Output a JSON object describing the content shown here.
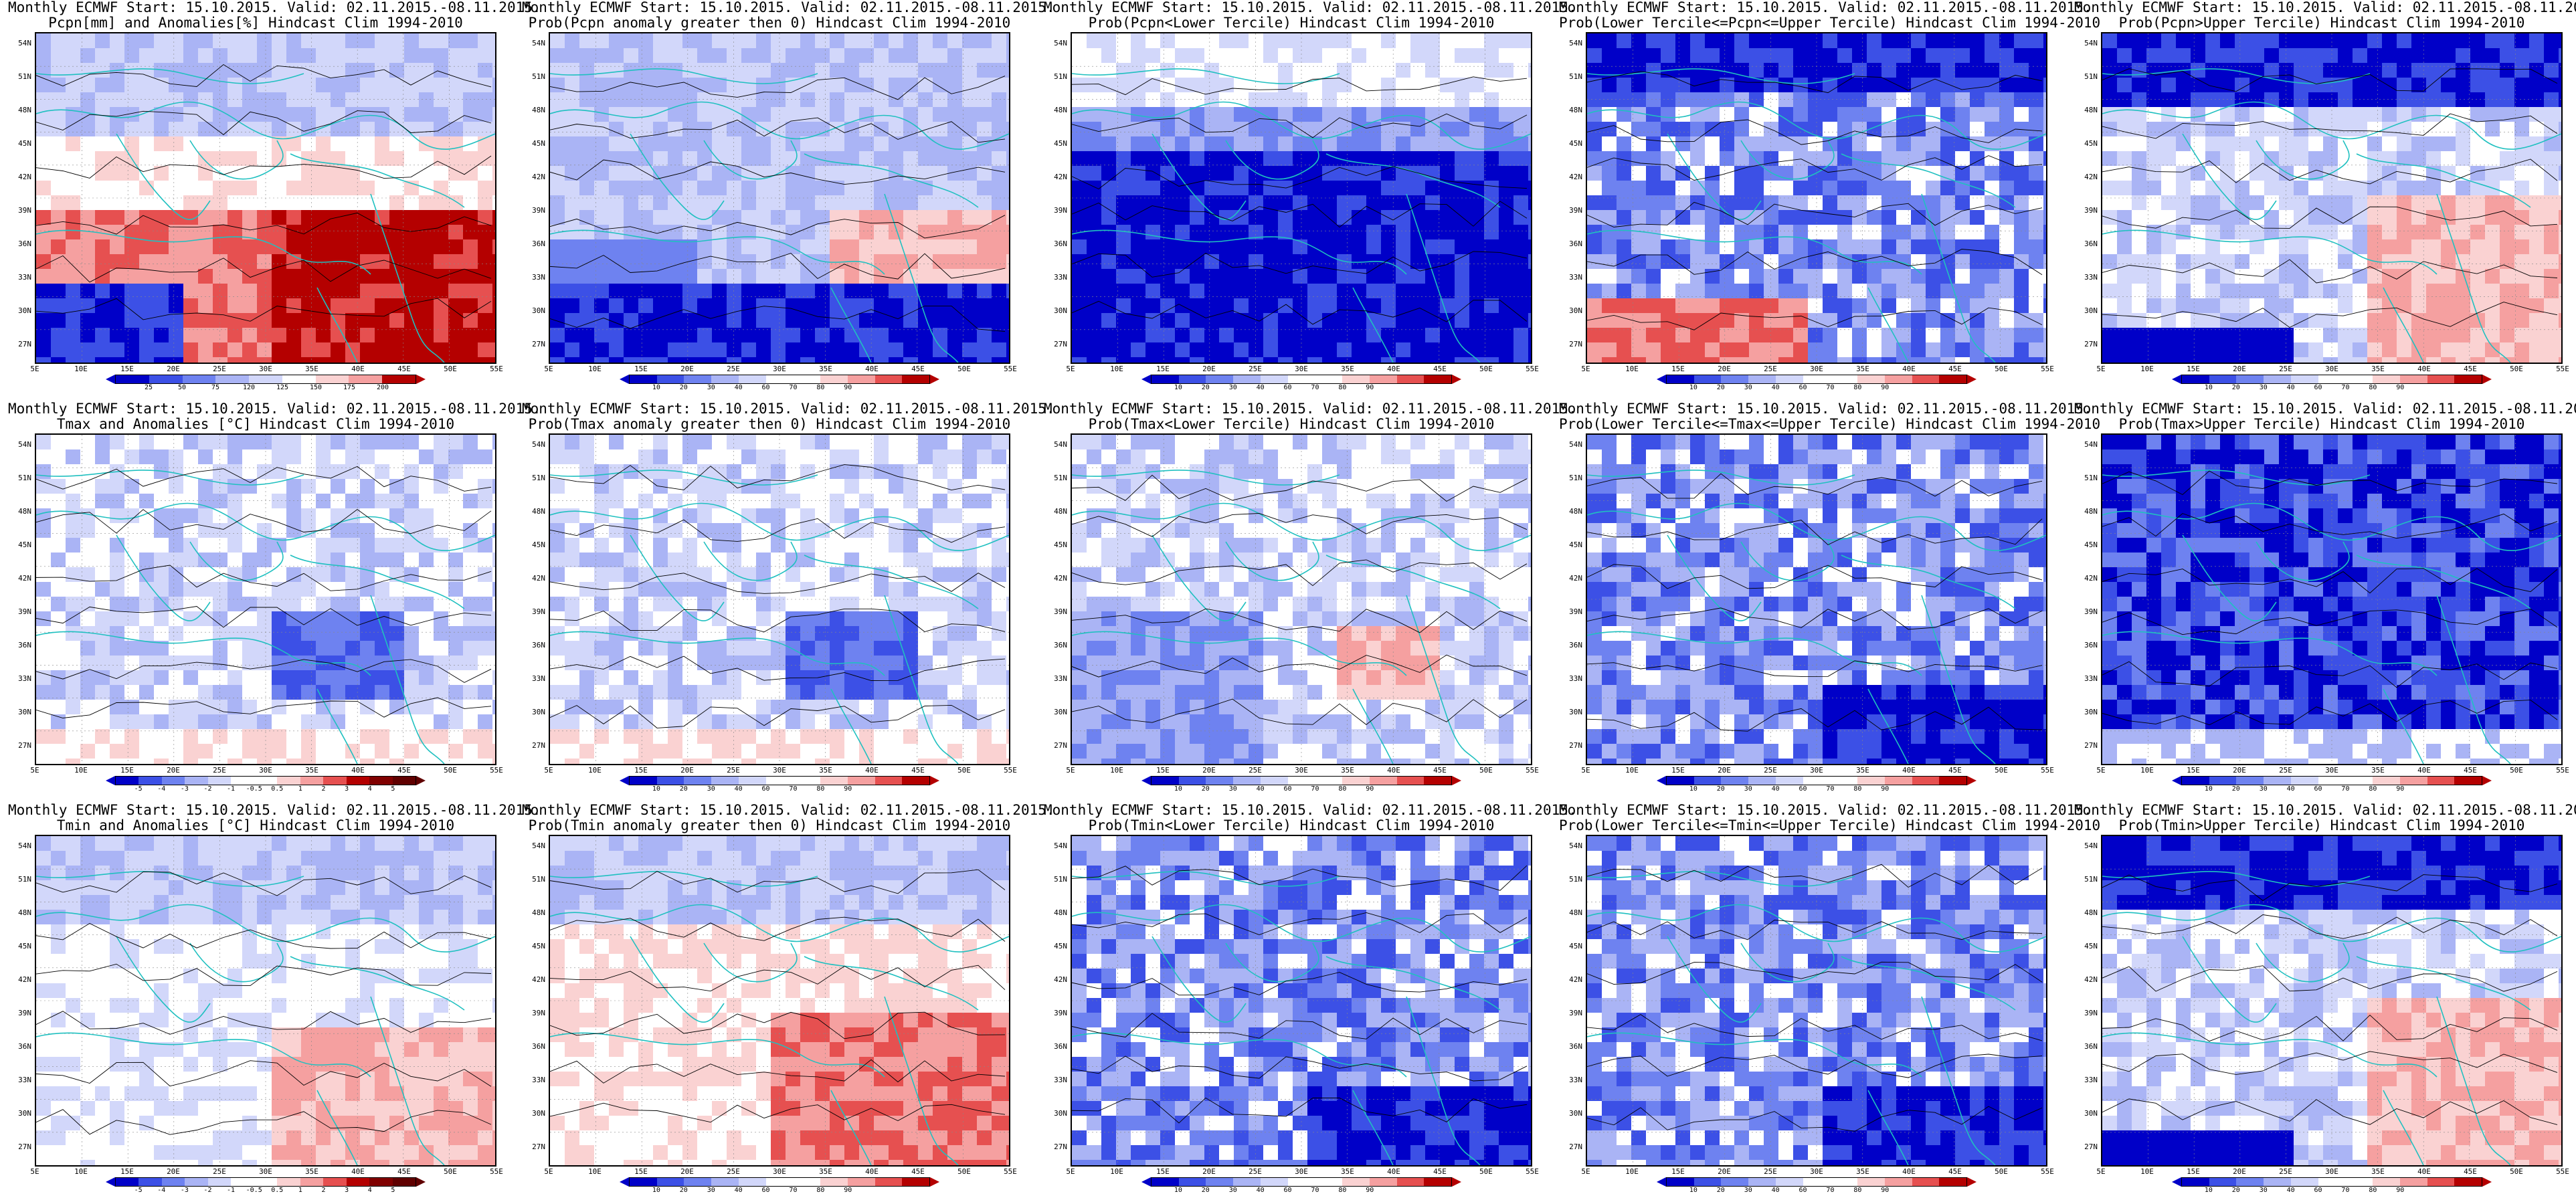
{
  "header_line": "Monthly ECMWF Start: 15.10.2015. Valid: 02.11.2015.-08.11.2015.",
  "lat_ticks": [
    "54N",
    "51N",
    "48N",
    "45N",
    "42N",
    "39N",
    "36N",
    "33N",
    "30N",
    "27N"
  ],
  "lon_ticks": [
    "5E",
    "10E",
    "15E",
    "20E",
    "25E",
    "30E",
    "35E",
    "40E",
    "45E",
    "50E",
    "55E"
  ],
  "prob_levels": [
    "10",
    "20",
    "30",
    "40",
    "60",
    "70",
    "80",
    "90"
  ],
  "anom_precip_levels": [
    "25",
    "50",
    "75",
    "120",
    "125",
    "150",
    "175",
    "200"
  ],
  "anom_temp_levels": [
    "-5",
    "-4",
    "-3",
    "-2",
    "-1",
    "-0.5",
    "0.5",
    "1",
    "2",
    "3",
    "4",
    "5"
  ],
  "colors": {
    "deep_blue": "#0000c8",
    "blue": "#3c50e6",
    "mid_blue": "#6e82f0",
    "light_blue": "#aab4f5",
    "pale_blue": "#d2d7fa",
    "white": "#ffffff",
    "pale_red": "#fad2d2",
    "light_red": "#f5a0a0",
    "red": "#e65050",
    "deep_red": "#b40000",
    "coast": "#20c0c0",
    "contour": "#000000"
  },
  "panels": [
    {
      "subtitle": "Pcpn[mm] and Anomalies[%] Hindcast Clim 1994-2010",
      "scale": "precip",
      "theme": "precip_anom"
    },
    {
      "subtitle": "Prob(Pcpn anomaly greater then 0) Hindcast Clim 1994-2010",
      "scale": "prob",
      "theme": "mixed_blue_south"
    },
    {
      "subtitle": "Prob(Pcpn<Lower Tercile) Hindcast Clim 1994-2010",
      "scale": "prob",
      "theme": "deep_blue_south"
    },
    {
      "subtitle": "Prob(Lower Tercile<=Pcpn<=Upper Tercile) Hindcast Clim 1994-2010",
      "scale": "prob",
      "theme": "blue_patchy_red_sw"
    },
    {
      "subtitle": "Prob(Pcpn>Upper Tercile) Hindcast Clim 1994-2010",
      "scale": "prob",
      "theme": "blue_north_red_east"
    },
    {
      "subtitle": "Tmax and Anomalies [°C] Hindcast Clim 1994-2010",
      "scale": "temp",
      "theme": "light_blue_mixed"
    },
    {
      "subtitle": "Prob(Tmax anomaly greater then 0) Hindcast Clim 1994-2010",
      "scale": "prob",
      "theme": "light_blue_mixed"
    },
    {
      "subtitle": "Prob(Tmax<Lower Tercile) Hindcast Clim 1994-2010",
      "scale": "prob",
      "theme": "mixed_blue_red"
    },
    {
      "subtitle": "Prob(Lower Tercile<=Tmax<=Upper Tercile) Hindcast Clim 1994-2010",
      "scale": "prob",
      "theme": "blue_patchy"
    },
    {
      "subtitle": "Prob(Tmax>Upper Tercile) Hindcast Clim 1994-2010",
      "scale": "prob",
      "theme": "deep_blue_all"
    },
    {
      "subtitle": "Tmin and Anomalies [°C] Hindcast Clim 1994-2010",
      "scale": "temp",
      "theme": "pale_red_se"
    },
    {
      "subtitle": "Prob(Tmin anomaly greater then 0) Hindcast Clim 1994-2010",
      "scale": "prob",
      "theme": "red_se"
    },
    {
      "subtitle": "Prob(Tmin<Lower Tercile) Hindcast Clim 1994-2010",
      "scale": "prob",
      "theme": "blue_patchy"
    },
    {
      "subtitle": "Prob(Lower Tercile<=Tmin<=Upper Tercile) Hindcast Clim 1994-2010",
      "scale": "prob",
      "theme": "blue_patchy"
    },
    {
      "subtitle": "Prob(Tmin>Upper Tercile) Hindcast Clim 1994-2010",
      "scale": "prob",
      "theme": "blue_north_red_east"
    }
  ]
}
